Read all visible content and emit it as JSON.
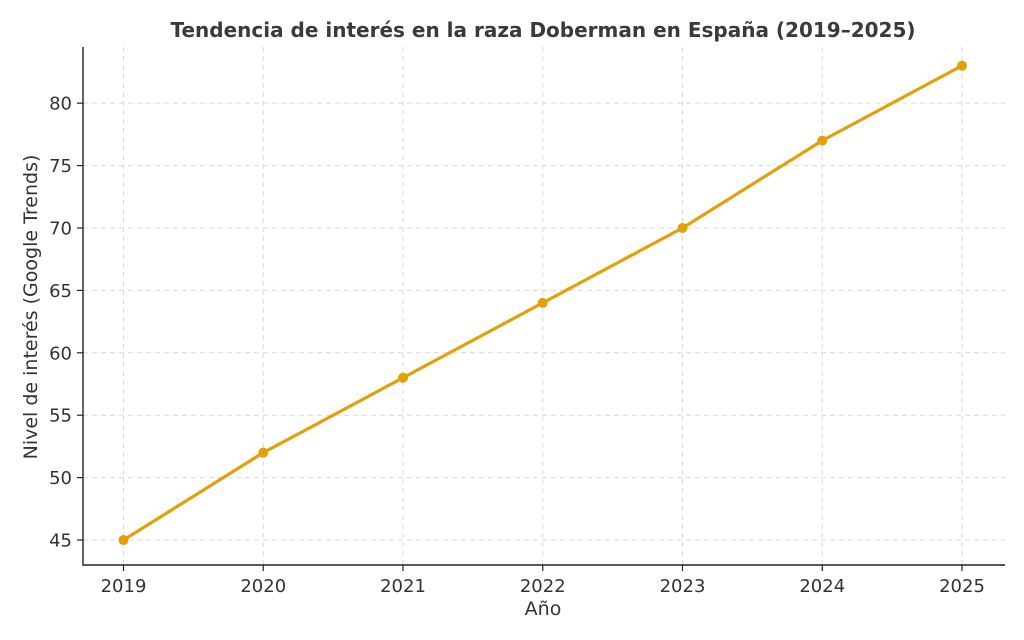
{
  "chart_data": {
    "type": "line",
    "title": "Tendencia de interés en la raza Doberman en España (2019–2025)",
    "xlabel": "Año",
    "ylabel": "Nivel de interés (Google Trends)",
    "categories": [
      "2019",
      "2020",
      "2021",
      "2022",
      "2023",
      "2024",
      "2025"
    ],
    "series": [
      {
        "values": [
          45,
          52,
          58,
          64,
          70,
          77,
          83
        ]
      }
    ],
    "yticks": [
      45,
      50,
      55,
      60,
      65,
      70,
      75,
      80
    ],
    "ylim": [
      43,
      84.5
    ],
    "grid": true,
    "color": "#e3a008"
  }
}
